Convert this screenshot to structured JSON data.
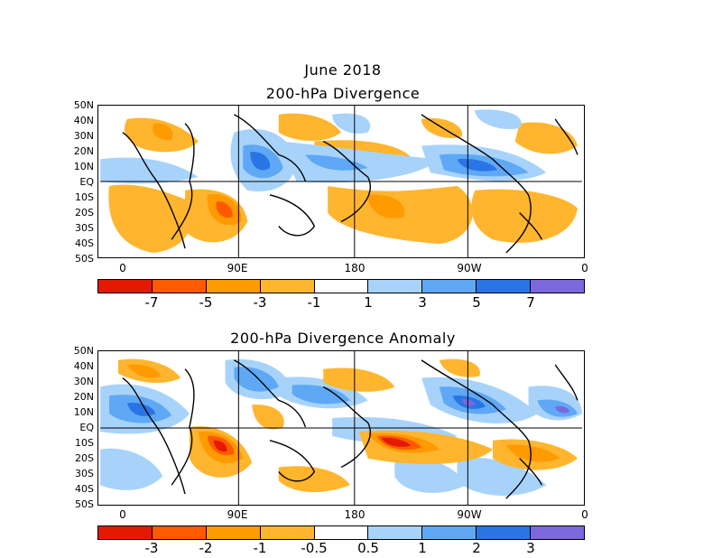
{
  "titles": {
    "month": "June 2018",
    "top": "200-hPa Divergence",
    "bottom": "200-hPa Divergence Anomaly"
  },
  "lat_labels": [
    "50N",
    "40N",
    "30N",
    "20N",
    "10N",
    "EQ",
    "10S",
    "20S",
    "30S",
    "40S",
    "50S"
  ],
  "lon_labels": [
    "0",
    "90E",
    "180",
    "90W",
    "0"
  ],
  "top_colorbar": {
    "colors": [
      "#e41a00",
      "#ff5a00",
      "#ff9a00",
      "#ffb52e",
      "#ffffff",
      "#a7d3fb",
      "#5fa8f5",
      "#2a75e6",
      "#7b68dc"
    ],
    "labels": [
      "-7",
      "-5",
      "-3",
      "-1",
      "1",
      "3",
      "5",
      "7"
    ]
  },
  "bottom_colorbar": {
    "colors": [
      "#e41a00",
      "#ff5a00",
      "#ff9a00",
      "#ffb52e",
      "#ffffff",
      "#a7d3fb",
      "#5fa8f5",
      "#2a75e6",
      "#7b68dc"
    ],
    "labels": [
      "-3",
      "-2",
      "-1",
      "-0.5",
      "0.5",
      "1",
      "2",
      "3"
    ]
  }
}
